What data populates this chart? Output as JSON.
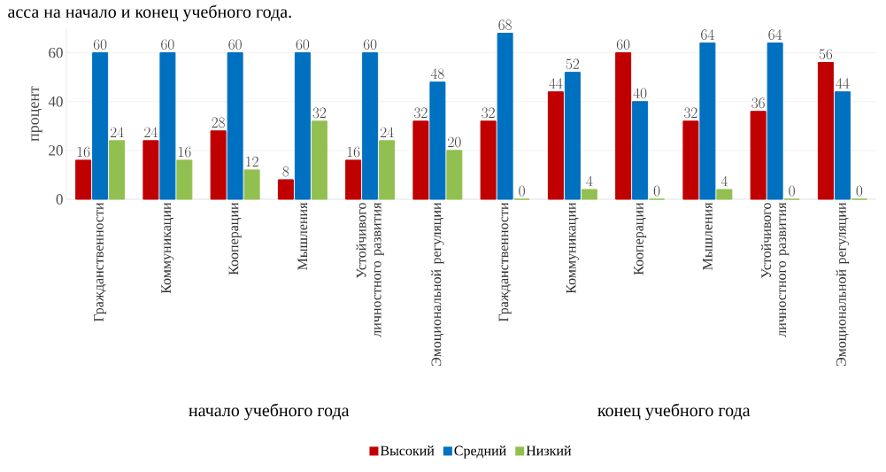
{
  "chart_data": {
    "type": "bar",
    "title": "асса на начало и конец учебного года.",
    "ylabel": "процент",
    "categories": [
      "Гражданственности",
      "Коммуникации",
      "Кооперации",
      "Мышления",
      "Устойчивого личностного развития",
      "Эмоциональной регуляции",
      "Гражданственности",
      "Коммуникации",
      "Кооперации",
      "Мышления",
      "Устойчивого личностного развития",
      "Эмоциональной регуляции"
    ],
    "series": [
      {
        "name": "Высокий",
        "color": "#c00000",
        "values": [
          16,
          24,
          28,
          8,
          16,
          32,
          32,
          44,
          60,
          32,
          36,
          56
        ]
      },
      {
        "name": "Средний",
        "color": "#0070c0",
        "values": [
          60,
          60,
          60,
          60,
          60,
          48,
          68,
          52,
          40,
          64,
          64,
          44
        ]
      },
      {
        "name": "Низкий",
        "color": "#92c050",
        "values": [
          24,
          16,
          12,
          32,
          24,
          20,
          0,
          4,
          0,
          4,
          0,
          0
        ]
      }
    ],
    "ylim": [
      0,
      70
    ],
    "yticks": [
      0,
      20,
      40,
      60
    ],
    "grid": "y",
    "legend": "bottom",
    "data_labels": true,
    "annotations": [
      "начало учебного года",
      "конец учебного года"
    ]
  }
}
